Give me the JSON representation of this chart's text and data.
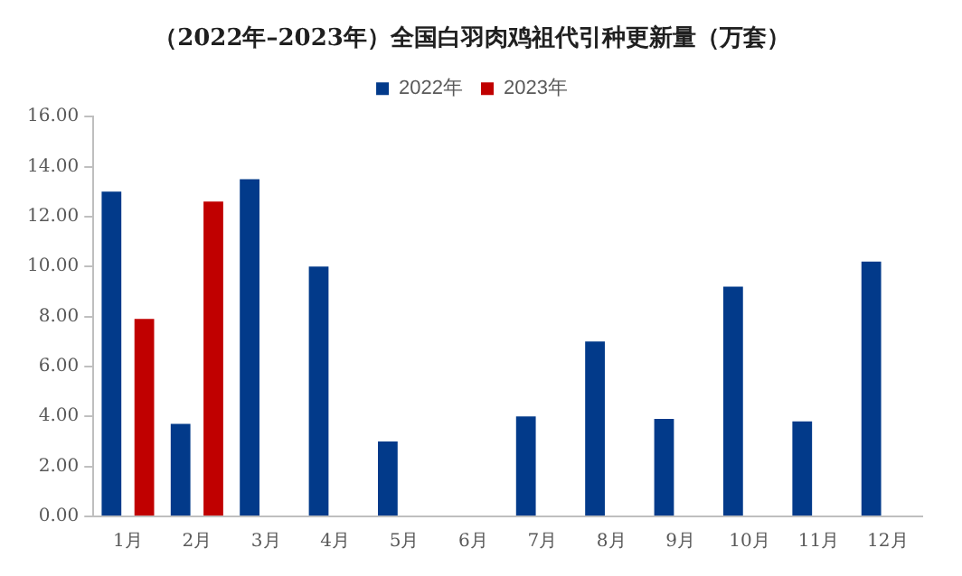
{
  "chart_data": {
    "type": "bar",
    "title": "（2022年–2023年）全国白羽肉鸡祖代引种更新量（万套）",
    "categories": [
      "1月",
      "2月",
      "3月",
      "4月",
      "5月",
      "6月",
      "7月",
      "8月",
      "9月",
      "10月",
      "11月",
      "12月"
    ],
    "series": [
      {
        "name": "2022年",
        "color": "#023a8a",
        "values": [
          13.0,
          3.7,
          13.5,
          10.0,
          3.0,
          null,
          4.0,
          7.0,
          3.9,
          9.2,
          3.8,
          10.2
        ]
      },
      {
        "name": "2023年",
        "color": "#c00000",
        "values": [
          7.9,
          12.6,
          null,
          null,
          null,
          null,
          null,
          null,
          null,
          null,
          null,
          null
        ]
      }
    ],
    "ylim": [
      0,
      16
    ],
    "yticks": [
      {
        "value": 0,
        "label": "0.00"
      },
      {
        "value": 2,
        "label": "2.00"
      },
      {
        "value": 4,
        "label": "4.00"
      },
      {
        "value": 6,
        "label": "6.00"
      },
      {
        "value": 8,
        "label": "8.00"
      },
      {
        "value": 10,
        "label": "10.00"
      },
      {
        "value": 12,
        "label": "12.00"
      },
      {
        "value": 14,
        "label": "14.00"
      },
      {
        "value": 16,
        "label": "16.00"
      }
    ],
    "grid": false,
    "legend": "top"
  }
}
